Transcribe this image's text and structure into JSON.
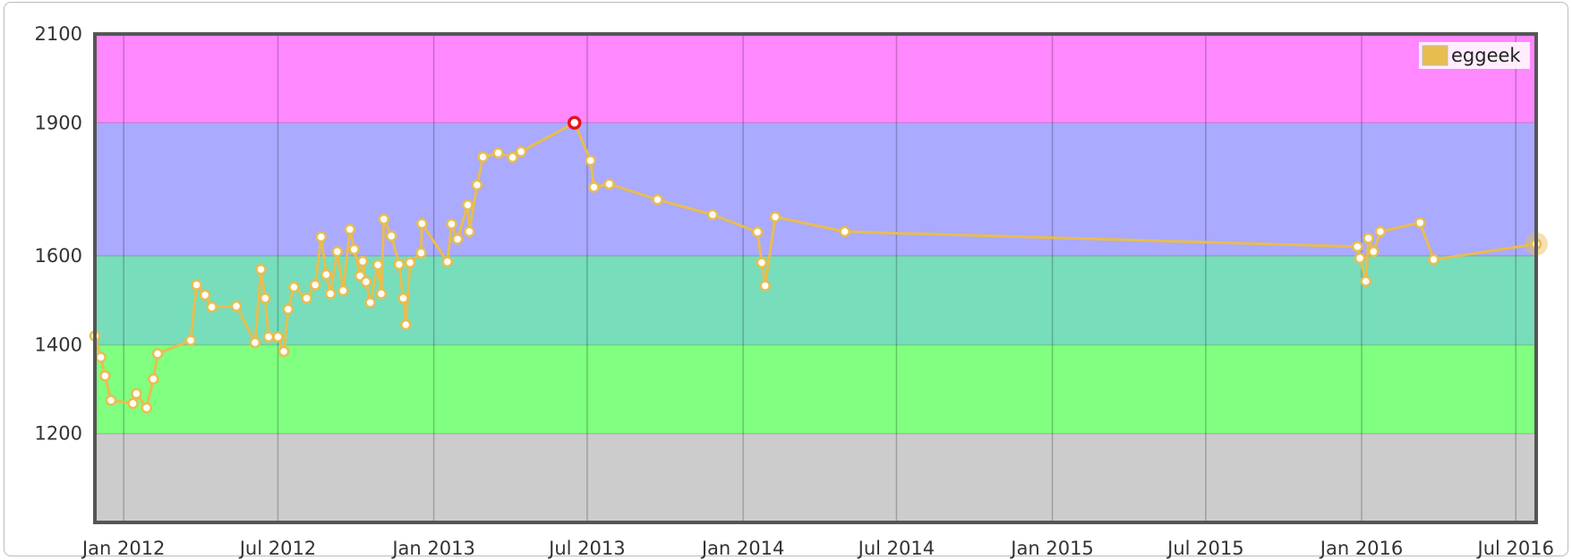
{
  "chart_data": {
    "type": "line",
    "series": [
      {
        "name": "eggeek",
        "color": "#e8bd4f",
        "points": [
          [
            "2011-11-28",
            1420
          ],
          [
            "2011-12-05",
            1372
          ],
          [
            "2011-12-10",
            1330
          ],
          [
            "2011-12-17",
            1275
          ],
          [
            "2012-01-12",
            1268
          ],
          [
            "2012-01-16",
            1290
          ],
          [
            "2012-01-28",
            1258
          ],
          [
            "2012-02-05",
            1323
          ],
          [
            "2012-02-10",
            1380
          ],
          [
            "2012-03-20",
            1410
          ],
          [
            "2012-03-27",
            1535
          ],
          [
            "2012-04-06",
            1512
          ],
          [
            "2012-04-14",
            1485
          ],
          [
            "2012-05-13",
            1487
          ],
          [
            "2012-06-04",
            1405
          ],
          [
            "2012-06-11",
            1570
          ],
          [
            "2012-06-16",
            1505
          ],
          [
            "2012-06-20",
            1418
          ],
          [
            "2012-07-01",
            1418
          ],
          [
            "2012-07-08",
            1385
          ],
          [
            "2012-07-13",
            1480
          ],
          [
            "2012-07-20",
            1530
          ],
          [
            "2012-08-04",
            1505
          ],
          [
            "2012-08-14",
            1535
          ],
          [
            "2012-08-21",
            1643
          ],
          [
            "2012-08-27",
            1558
          ],
          [
            "2012-09-01",
            1515
          ],
          [
            "2012-09-09",
            1610
          ],
          [
            "2012-09-16",
            1522
          ],
          [
            "2012-09-24",
            1660
          ],
          [
            "2012-09-29",
            1615
          ],
          [
            "2012-10-06",
            1555
          ],
          [
            "2012-10-09",
            1588
          ],
          [
            "2012-10-13",
            1542
          ],
          [
            "2012-10-18",
            1495
          ],
          [
            "2012-10-27",
            1580
          ],
          [
            "2012-10-31",
            1515
          ],
          [
            "2012-11-03",
            1683
          ],
          [
            "2012-11-12",
            1645
          ],
          [
            "2012-11-21",
            1581
          ],
          [
            "2012-11-26",
            1505
          ],
          [
            "2012-11-29",
            1445
          ],
          [
            "2012-12-04",
            1585
          ],
          [
            "2012-12-17",
            1607
          ],
          [
            "2012-12-18",
            1673
          ],
          [
            "2013-01-17",
            1587
          ],
          [
            "2013-01-22",
            1672
          ],
          [
            "2013-01-29",
            1638
          ],
          [
            "2013-02-10",
            1715
          ],
          [
            "2013-02-12",
            1655
          ],
          [
            "2013-02-21",
            1760
          ],
          [
            "2013-02-28",
            1823
          ],
          [
            "2013-03-18",
            1832
          ],
          [
            "2013-04-04",
            1822
          ],
          [
            "2013-04-14",
            1835
          ],
          [
            "2013-06-16",
            1900
          ],
          [
            "2013-07-05",
            1815
          ],
          [
            "2013-07-09",
            1755
          ],
          [
            "2013-07-27",
            1762
          ],
          [
            "2013-09-22",
            1727
          ],
          [
            "2013-11-26",
            1693
          ],
          [
            "2014-01-18",
            1654
          ],
          [
            "2014-01-23",
            1585
          ],
          [
            "2014-01-27",
            1533
          ],
          [
            "2014-02-08",
            1688
          ],
          [
            "2014-05-01",
            1655
          ],
          [
            "2015-12-27",
            1621
          ],
          [
            "2015-12-30",
            1595
          ],
          [
            "2016-01-06",
            1543
          ],
          [
            "2016-01-09",
            1640
          ],
          [
            "2016-01-15",
            1610
          ],
          [
            "2016-01-23",
            1655
          ],
          [
            "2016-03-10",
            1675
          ],
          [
            "2016-03-26",
            1592
          ],
          [
            "2016-07-25",
            1627
          ]
        ],
        "highlight_max": [
          "2013-06-16",
          1900
        ]
      }
    ],
    "x_axis": {
      "type": "date",
      "range": [
        "2011-11-28",
        "2016-07-25"
      ],
      "tick_values": [
        "2012-01-01",
        "2012-07-01",
        "2013-01-01",
        "2013-07-01",
        "2014-01-01",
        "2014-07-01",
        "2015-01-01",
        "2015-07-01",
        "2016-01-01",
        "2016-07-01"
      ],
      "tick_labels": [
        "Jan 2012",
        "Jul 2012",
        "Jan 2013",
        "Jul 2013",
        "Jan 2014",
        "Jul 2014",
        "Jan 2015",
        "Jul 2015",
        "Jan 2016",
        "Jul 2016"
      ]
    },
    "y_axis": {
      "range": [
        1000,
        2100
      ],
      "ticks": [
        1200,
        1400,
        1600,
        1900,
        2100
      ],
      "tick_labels": [
        "1200",
        "1400",
        "1600",
        "1900",
        "2100"
      ]
    },
    "bands": [
      {
        "from": 1000,
        "to": 1200,
        "color": "#cccccc"
      },
      {
        "from": 1200,
        "to": 1400,
        "color": "#80ff80"
      },
      {
        "from": 1400,
        "to": 1600,
        "color": "#77ddbb"
      },
      {
        "from": 1600,
        "to": 1900,
        "color": "#aaaaff"
      },
      {
        "from": 1900,
        "to": 2100,
        "color": "#ff88ff"
      }
    ],
    "grid": true,
    "legend": {
      "position": "top-right",
      "entries": [
        "eggeek"
      ]
    },
    "title": "",
    "xlabel": "",
    "ylabel": ""
  }
}
